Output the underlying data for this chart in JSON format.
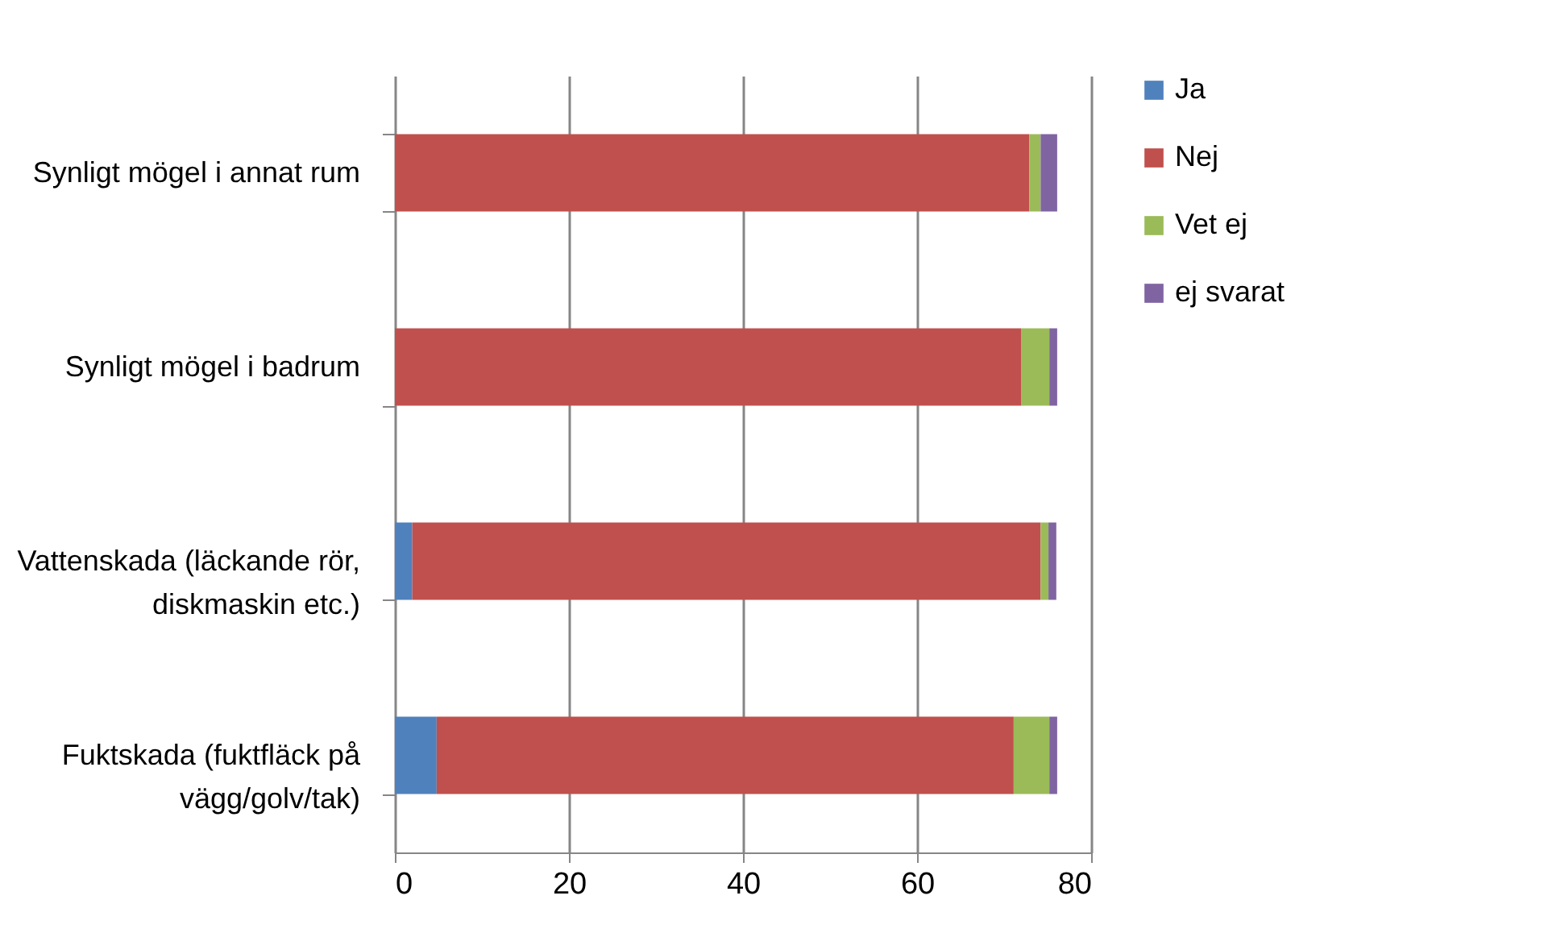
{
  "chart_data": {
    "type": "bar",
    "orientation": "horizontal",
    "stacked": true,
    "categories": [
      "Synligt mögel i annat rum",
      "Synligt mögel i badrum",
      "Vattenskada (läckande rör, diskmaskin etc.)",
      "Fuktskada (fuktfläck på vägg/golv/tak)"
    ],
    "series": [
      {
        "name": "Ja",
        "color": "#4f81bd",
        "values": [
          0,
          0,
          2.0,
          4.8
        ]
      },
      {
        "name": "Nej",
        "color": "#c0504d",
        "values": [
          72.9,
          72.0,
          72.2,
          66.3
        ]
      },
      {
        "name": "Vet ej",
        "color": "#9bbb59",
        "values": [
          1.3,
          3.2,
          0.9,
          4.1
        ]
      },
      {
        "name": "ej svarat",
        "color": "#8064a2",
        "values": [
          1.9,
          0.9,
          0.9,
          0.9
        ]
      }
    ],
    "xlim": [
      0,
      80
    ],
    "xticks": [
      0,
      20,
      40,
      60,
      80
    ],
    "grid": "x",
    "legend": "right"
  }
}
